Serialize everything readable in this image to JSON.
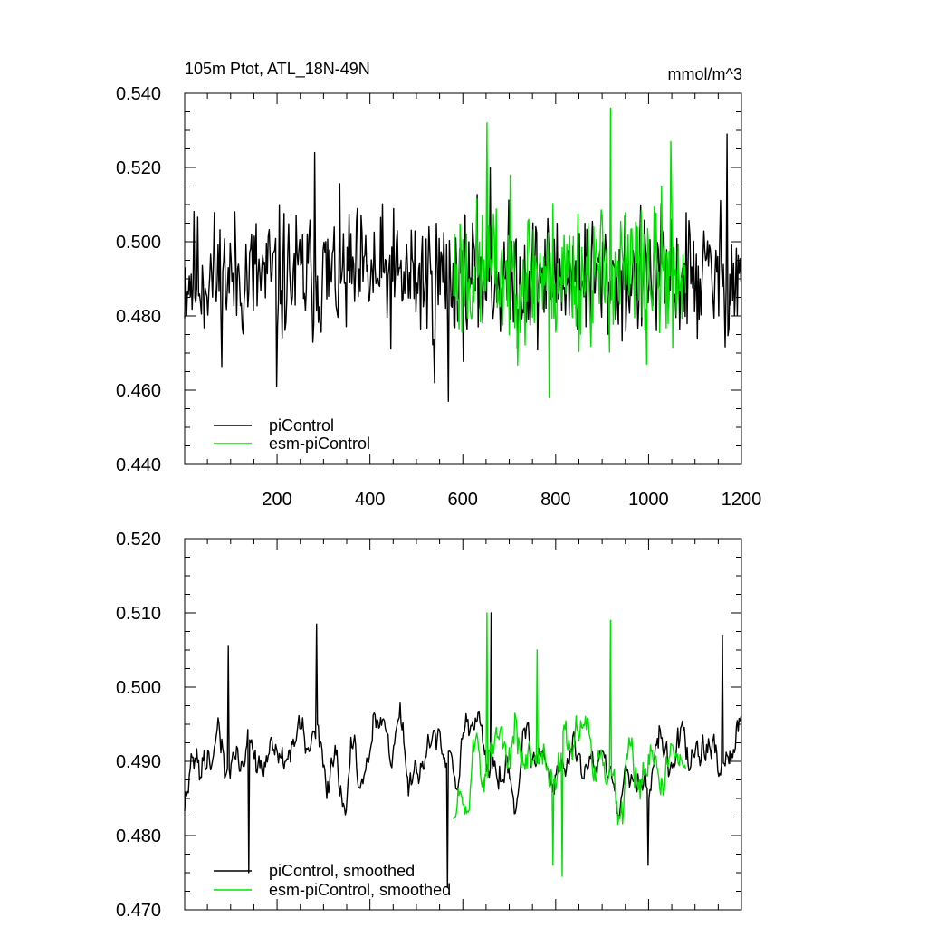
{
  "header": {
    "title": "105m Ptot, ATL_18N-49N",
    "units": "mmol/m^3"
  },
  "colors": {
    "piControl": "#000000",
    "esm_piControl": "#00e000",
    "axis": "#000000"
  },
  "chart_data": [
    {
      "type": "line",
      "title": "105m Ptot, ATL_18N-49N",
      "units": "mmol/m^3",
      "xlim": [
        1,
        1200
      ],
      "ylim": [
        0.44,
        0.54
      ],
      "xticks": [
        200,
        400,
        600,
        800,
        1000,
        1200
      ],
      "xtick_labels": [
        "200",
        "400",
        "600",
        "800",
        "1000",
        "1200"
      ],
      "yticks": [
        0.44,
        0.46,
        0.48,
        0.5,
        0.52,
        0.54
      ],
      "ytick_labels": [
        "0.440",
        "0.460",
        "0.480",
        "0.500",
        "0.520",
        "0.540"
      ],
      "legend_position": "bottom-left",
      "series": [
        {
          "name": "piControl",
          "color": "#000000",
          "x_start": 1,
          "x_end": 1200,
          "mean": 0.4905,
          "noise": 0.0088,
          "seed": 11,
          "smooth": 1,
          "peaks": [
            [
              282,
              0.524
            ],
            [
              1170,
              0.529
            ],
            [
              660,
              0.52
            ],
            [
              200,
              0.461
            ],
            [
              570,
              0.457
            ],
            [
              540,
              0.462
            ]
          ]
        },
        {
          "name": "esm-piControl",
          "color": "#00e000",
          "x_start": 580,
          "x_end": 1080,
          "mean": 0.4915,
          "noise": 0.0095,
          "seed": 23,
          "smooth": 1,
          "peaks": [
            [
              652,
              0.532
            ],
            [
              918,
              0.536
            ],
            [
              1048,
              0.527
            ],
            [
              786,
              0.458
            ],
            [
              996,
              0.467
            ]
          ]
        }
      ]
    },
    {
      "type": "line",
      "xlim": [
        1,
        1200
      ],
      "ylim": [
        0.47,
        0.52
      ],
      "xticks": [
        200,
        400,
        600,
        800,
        1000,
        1200
      ],
      "yticks": [
        0.47,
        0.48,
        0.49,
        0.5,
        0.51,
        0.52
      ],
      "ytick_labels": [
        "0.470",
        "0.480",
        "0.490",
        "0.500",
        "0.510",
        "0.520"
      ],
      "legend_position": "bottom-left",
      "series": [
        {
          "name": "piControl, smoothed",
          "color": "#000000",
          "x_start": 1,
          "x_end": 1200,
          "mean": 0.4905,
          "noise": 0.0042,
          "seed": 37,
          "smooth": 4,
          "peaks": [
            [
              95,
              0.5055
            ],
            [
              285,
              0.5085
            ],
            [
              662,
              0.51
            ],
            [
              1160,
              0.507
            ],
            [
              140,
              0.475
            ],
            [
              568,
              0.473
            ],
            [
              1000,
              0.476
            ]
          ]
        },
        {
          "name": "esm-piControl, smoothed",
          "color": "#00e000",
          "x_start": 580,
          "x_end": 1080,
          "mean": 0.4905,
          "noise": 0.0048,
          "seed": 53,
          "smooth": 4,
          "peaks": [
            [
              652,
              0.51
            ],
            [
              918,
              0.509
            ],
            [
              760,
              0.505
            ],
            [
              815,
              0.4745
            ],
            [
              795,
              0.476
            ]
          ]
        }
      ]
    }
  ]
}
